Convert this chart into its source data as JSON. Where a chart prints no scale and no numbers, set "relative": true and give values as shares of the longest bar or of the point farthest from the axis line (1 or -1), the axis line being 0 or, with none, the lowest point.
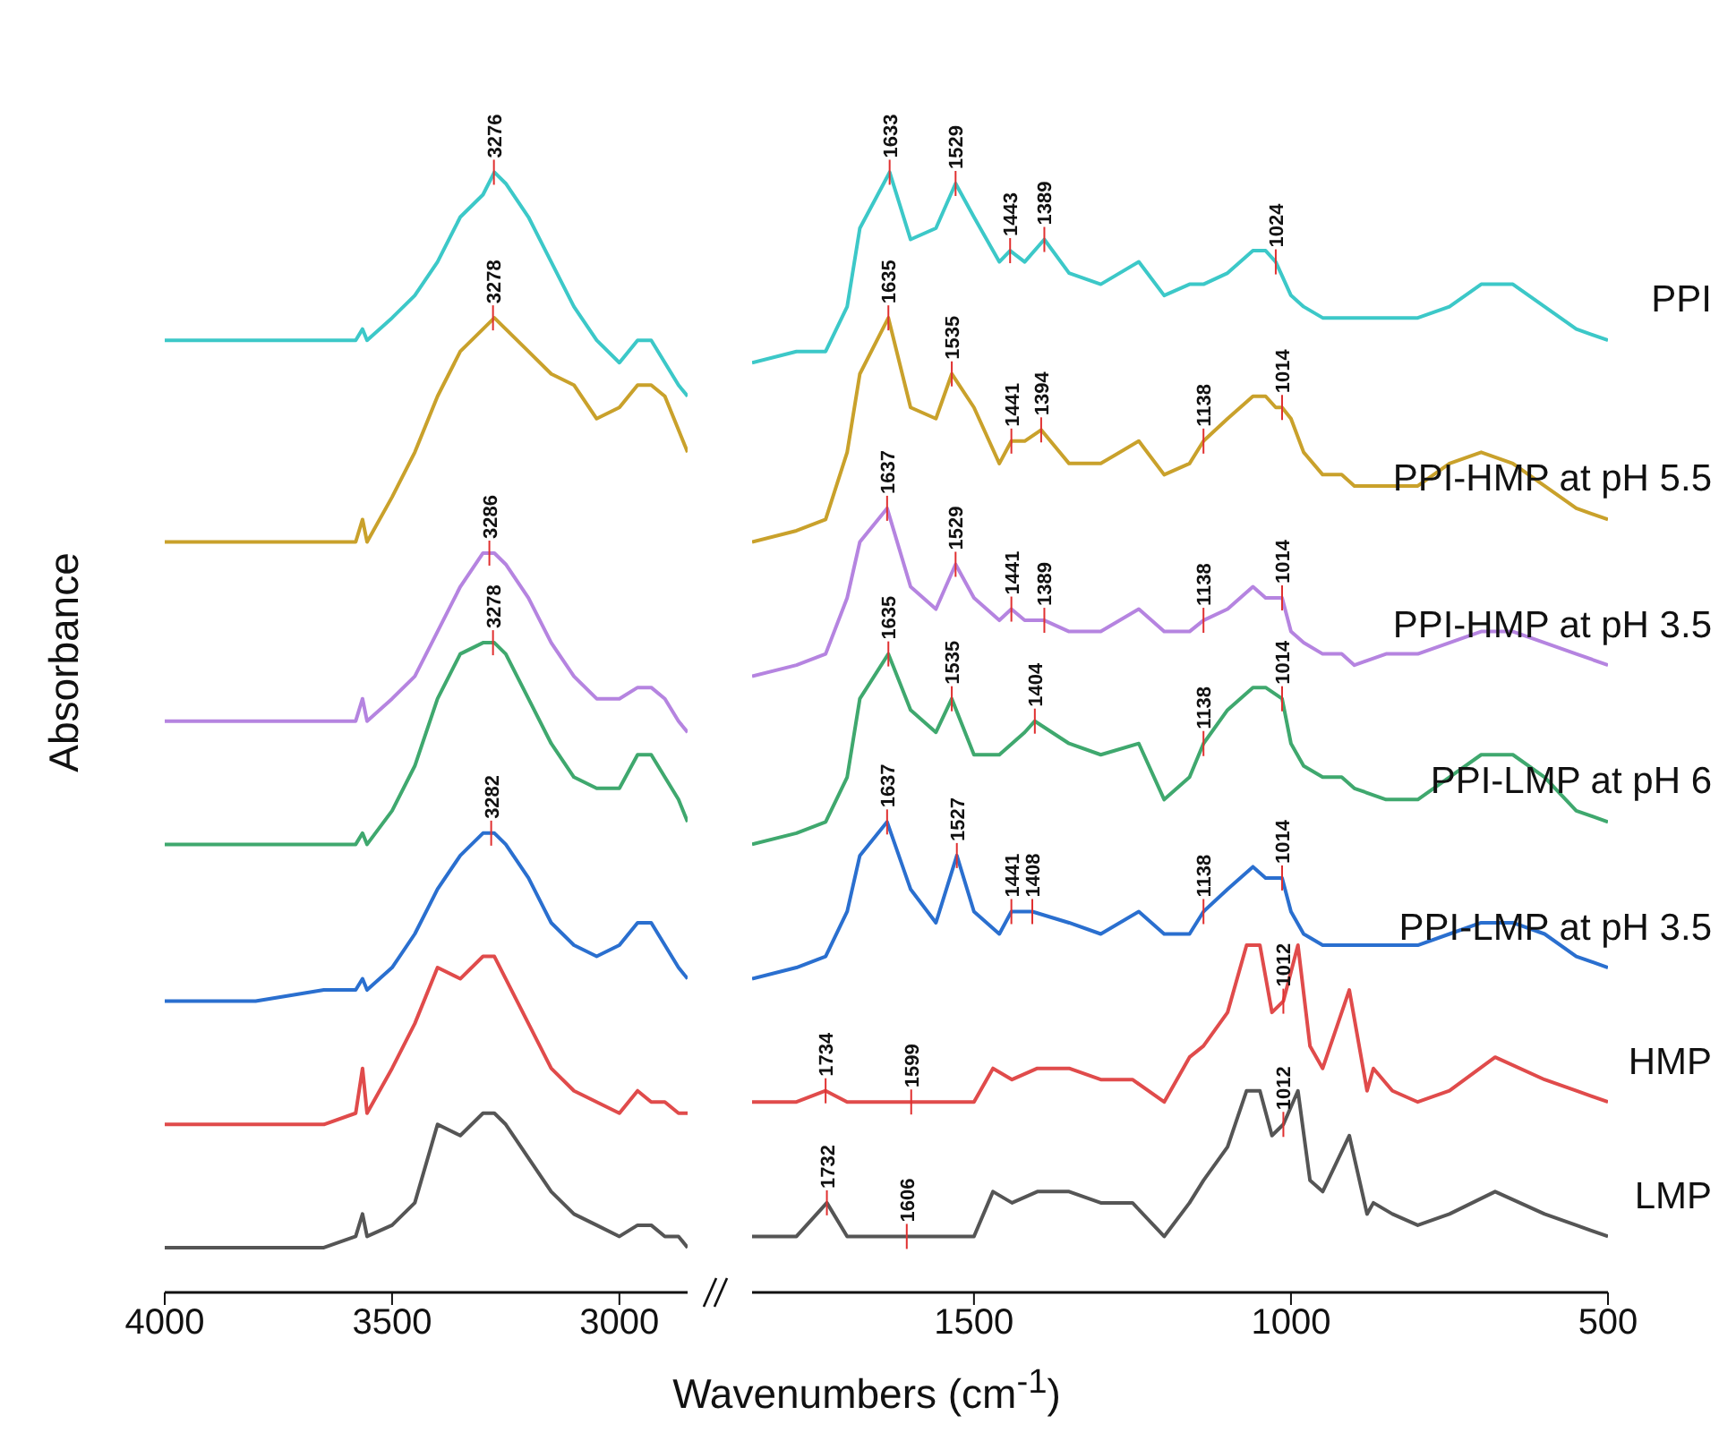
{
  "chart_data": [
    {
      "type": "line",
      "relative": true,
      "ylabel": "Absorbance",
      "xlabel": "Wavenumbers (cm$^{-1}$)",
      "x": [
        4000,
        3800,
        3650,
        3580,
        3565,
        3555,
        3500,
        3450,
        3400,
        3350,
        3300,
        3275,
        3250,
        3200,
        3150,
        3100,
        3050,
        3000,
        2960,
        2930,
        2900,
        2870,
        2850
      ],
      "xlim": [
        4000,
        2850
      ],
      "xticks": [
        4000,
        3500,
        3000
      ],
      "series": [
        {
          "color": "#3cc8c8",
          "values": [
            0.85,
            0.85,
            0.85,
            0.85,
            0.86,
            0.85,
            0.87,
            0.89,
            0.92,
            0.96,
            0.98,
            1,
            0.99,
            0.96,
            0.92,
            0.88,
            0.85,
            0.83,
            0.85,
            0.85,
            0.83,
            0.81,
            0.8
          ]
        },
        {
          "color": "#c9a12b",
          "values": [
            0.67,
            0.67,
            0.67,
            0.67,
            0.69,
            0.67,
            0.71,
            0.75,
            0.8,
            0.84,
            0.86,
            0.87,
            0.86,
            0.84,
            0.82,
            0.81,
            0.78,
            0.79,
            0.81,
            0.81,
            0.8,
            0.77,
            0.75
          ]
        },
        {
          "color": "#b584e0",
          "values": [
            0.51,
            0.51,
            0.51,
            0.51,
            0.53,
            0.51,
            0.53,
            0.55,
            0.59,
            0.63,
            0.66,
            0.66,
            0.65,
            0.62,
            0.58,
            0.55,
            0.53,
            0.53,
            0.54,
            0.54,
            0.53,
            0.51,
            0.5
          ]
        },
        {
          "color": "#3fa86e",
          "values": [
            0.4,
            0.4,
            0.4,
            0.4,
            0.41,
            0.4,
            0.43,
            0.47,
            0.53,
            0.57,
            0.58,
            0.58,
            0.57,
            0.53,
            0.49,
            0.46,
            0.45,
            0.45,
            0.48,
            0.48,
            0.46,
            0.44,
            0.42
          ]
        },
        {
          "color": "#2a6fcf",
          "values": [
            0.26,
            0.26,
            0.27,
            0.27,
            0.28,
            0.27,
            0.29,
            0.32,
            0.36,
            0.39,
            0.41,
            0.41,
            0.4,
            0.37,
            0.33,
            0.31,
            0.3,
            0.31,
            0.33,
            0.33,
            0.31,
            0.29,
            0.28
          ]
        },
        {
          "color": "#e04b4b",
          "values": [
            0.15,
            0.15,
            0.15,
            0.16,
            0.2,
            0.16,
            0.2,
            0.24,
            0.29,
            0.28,
            0.3,
            0.3,
            0.28,
            0.24,
            0.2,
            0.18,
            0.17,
            0.16,
            0.18,
            0.17,
            0.17,
            0.16,
            0.16
          ]
        },
        {
          "color": "#555555",
          "values": [
            0.04,
            0.04,
            0.04,
            0.05,
            0.07,
            0.05,
            0.06,
            0.08,
            0.15,
            0.14,
            0.16,
            0.16,
            0.15,
            0.12,
            0.09,
            0.07,
            0.06,
            0.05,
            0.06,
            0.06,
            0.05,
            0.05,
            0.04
          ]
        }
      ],
      "annotations": [
        {
          "text": "3276",
          "x": 3276,
          "y": 1
        },
        {
          "text": "3278",
          "x": 3278,
          "y": 0.87
        },
        {
          "text": "3286",
          "x": 3286,
          "y": 0.66
        },
        {
          "text": "3278",
          "x": 3278,
          "y": 0.58
        },
        {
          "text": "3282",
          "x": 3282,
          "y": 0.41
        }
      ]
    },
    {
      "type": "line",
      "relative": true,
      "xlim": [
        1850,
        500
      ],
      "xticks": [
        1500,
        1000,
        500
      ],
      "series": [
        {
          "name": "PPI",
          "color": "#3cc8c8",
          "x": [
            1850,
            1780,
            1734,
            1700,
            1680,
            1633,
            1600,
            1560,
            1529,
            1500,
            1460,
            1443,
            1420,
            1389,
            1350,
            1300,
            1240,
            1200,
            1160,
            1138,
            1100,
            1060,
            1040,
            1024,
            1000,
            980,
            950,
            920,
            900,
            850,
            800,
            750,
            700,
            650,
            600,
            550,
            500
          ],
          "values": [
            0.83,
            0.84,
            0.84,
            0.88,
            0.95,
            1,
            0.94,
            0.95,
            0.99,
            0.96,
            0.92,
            0.93,
            0.92,
            0.94,
            0.91,
            0.9,
            0.92,
            0.89,
            0.9,
            0.9,
            0.91,
            0.93,
            0.93,
            0.92,
            0.89,
            0.88,
            0.87,
            0.87,
            0.87,
            0.87,
            0.87,
            0.88,
            0.9,
            0.9,
            0.88,
            0.86,
            0.85
          ]
        },
        {
          "name": "PPI-HMP at pH 5.5",
          "color": "#c9a12b",
          "x": [
            1850,
            1780,
            1734,
            1700,
            1680,
            1635,
            1600,
            1560,
            1535,
            1500,
            1460,
            1441,
            1420,
            1394,
            1350,
            1300,
            1240,
            1200,
            1160,
            1138,
            1100,
            1060,
            1040,
            1024,
            1014,
            1000,
            980,
            950,
            920,
            900,
            850,
            800,
            750,
            700,
            650,
            600,
            550,
            500
          ],
          "values": [
            0.67,
            0.68,
            0.69,
            0.75,
            0.82,
            0.87,
            0.79,
            0.78,
            0.82,
            0.79,
            0.74,
            0.76,
            0.76,
            0.77,
            0.74,
            0.74,
            0.76,
            0.73,
            0.74,
            0.76,
            0.78,
            0.8,
            0.8,
            0.79,
            0.79,
            0.78,
            0.75,
            0.73,
            0.73,
            0.72,
            0.72,
            0.72,
            0.74,
            0.75,
            0.74,
            0.72,
            0.7,
            0.69
          ]
        },
        {
          "name": "PPI-HMP at pH 3.5",
          "color": "#b584e0",
          "x": [
            1850,
            1780,
            1734,
            1700,
            1680,
            1637,
            1600,
            1560,
            1529,
            1500,
            1460,
            1441,
            1420,
            1389,
            1350,
            1300,
            1240,
            1200,
            1160,
            1138,
            1100,
            1060,
            1040,
            1014,
            1000,
            980,
            950,
            920,
            900,
            850,
            800,
            750,
            700,
            650,
            600,
            550,
            500
          ],
          "values": [
            0.55,
            0.56,
            0.57,
            0.62,
            0.67,
            0.7,
            0.63,
            0.61,
            0.65,
            0.62,
            0.6,
            0.61,
            0.6,
            0.6,
            0.59,
            0.59,
            0.61,
            0.59,
            0.59,
            0.6,
            0.61,
            0.63,
            0.62,
            0.62,
            0.59,
            0.58,
            0.57,
            0.57,
            0.56,
            0.57,
            0.57,
            0.58,
            0.59,
            0.59,
            0.58,
            0.57,
            0.56
          ]
        },
        {
          "name": "PPI-LMP at pH 6",
          "color": "#3fa86e",
          "x": [
            1850,
            1780,
            1734,
            1700,
            1680,
            1635,
            1600,
            1560,
            1535,
            1500,
            1460,
            1420,
            1404,
            1350,
            1300,
            1240,
            1200,
            1160,
            1138,
            1100,
            1060,
            1040,
            1014,
            1000,
            980,
            950,
            920,
            900,
            850,
            800,
            750,
            700,
            650,
            600,
            550,
            500
          ],
          "values": [
            0.4,
            0.41,
            0.42,
            0.46,
            0.53,
            0.57,
            0.52,
            0.5,
            0.53,
            0.48,
            0.48,
            0.5,
            0.51,
            0.49,
            0.48,
            0.49,
            0.44,
            0.46,
            0.49,
            0.52,
            0.54,
            0.54,
            0.53,
            0.49,
            0.47,
            0.46,
            0.46,
            0.45,
            0.44,
            0.44,
            0.46,
            0.48,
            0.48,
            0.46,
            0.43,
            0.42
          ]
        },
        {
          "name": "PPI-LMP at pH 3.5",
          "color": "#2a6fcf",
          "x": [
            1850,
            1780,
            1734,
            1700,
            1680,
            1637,
            1600,
            1560,
            1527,
            1500,
            1460,
            1441,
            1408,
            1350,
            1300,
            1240,
            1200,
            1160,
            1138,
            1100,
            1060,
            1040,
            1014,
            1000,
            980,
            950,
            920,
            900,
            850,
            800,
            750,
            700,
            650,
            600,
            550,
            500
          ],
          "values": [
            0.28,
            0.29,
            0.3,
            0.34,
            0.39,
            0.42,
            0.36,
            0.33,
            0.39,
            0.34,
            0.32,
            0.34,
            0.34,
            0.33,
            0.32,
            0.34,
            0.32,
            0.32,
            0.34,
            0.36,
            0.38,
            0.37,
            0.37,
            0.34,
            0.32,
            0.31,
            0.31,
            0.31,
            0.31,
            0.31,
            0.32,
            0.33,
            0.33,
            0.32,
            0.3,
            0.29
          ]
        },
        {
          "name": "HMP",
          "color": "#e04b4b",
          "x": [
            1850,
            1780,
            1734,
            1700,
            1650,
            1599,
            1560,
            1500,
            1470,
            1440,
            1400,
            1350,
            1300,
            1250,
            1200,
            1160,
            1138,
            1100,
            1070,
            1049,
            1030,
            1012,
            989,
            970,
            950,
            908,
            880,
            870,
            840,
            800,
            750,
            678,
            600,
            550,
            500
          ],
          "values": [
            0.17,
            0.17,
            0.18,
            0.17,
            0.17,
            0.17,
            0.17,
            0.17,
            0.2,
            0.19,
            0.2,
            0.2,
            0.19,
            0.19,
            0.17,
            0.21,
            0.22,
            0.25,
            0.31,
            0.31,
            0.25,
            0.26,
            0.31,
            0.22,
            0.2,
            0.27,
            0.18,
            0.2,
            0.18,
            0.17,
            0.18,
            0.21,
            0.19,
            0.18,
            0.17
          ]
        },
        {
          "name": "LMP",
          "color": "#555555",
          "x": [
            1850,
            1780,
            1732,
            1700,
            1650,
            1606,
            1560,
            1500,
            1470,
            1440,
            1400,
            1350,
            1300,
            1250,
            1200,
            1160,
            1138,
            1100,
            1070,
            1049,
            1030,
            1012,
            989,
            970,
            950,
            908,
            880,
            870,
            840,
            800,
            750,
            678,
            600,
            550,
            500
          ],
          "values": [
            0.05,
            0.05,
            0.08,
            0.05,
            0.05,
            0.05,
            0.05,
            0.05,
            0.09,
            0.08,
            0.09,
            0.09,
            0.08,
            0.08,
            0.05,
            0.08,
            0.1,
            0.13,
            0.18,
            0.18,
            0.14,
            0.15,
            0.18,
            0.1,
            0.09,
            0.14,
            0.07,
            0.08,
            0.07,
            0.06,
            0.07,
            0.09,
            0.07,
            0.06,
            0.05
          ]
        }
      ],
      "annotations": [
        {
          "text": "1633",
          "x": 1633,
          "y": 1
        },
        {
          "text": "1529",
          "x": 1529,
          "y": 0.99
        },
        {
          "text": "1443",
          "x": 1443,
          "y": 0.93
        },
        {
          "text": "1389",
          "x": 1389,
          "y": 0.94
        },
        {
          "text": "1024",
          "x": 1024,
          "y": 0.92
        },
        {
          "text": "1635",
          "x": 1635,
          "y": 0.87
        },
        {
          "text": "1535",
          "x": 1535,
          "y": 0.82
        },
        {
          "text": "1441",
          "x": 1441,
          "y": 0.76
        },
        {
          "text": "1394",
          "x": 1394,
          "y": 0.77
        },
        {
          "text": "1138",
          "x": 1138,
          "y": 0.76
        },
        {
          "text": "1014",
          "x": 1014,
          "y": 0.79
        },
        {
          "text": "1637",
          "x": 1637,
          "y": 0.7
        },
        {
          "text": "1529",
          "x": 1529,
          "y": 0.65
        },
        {
          "text": "1441",
          "x": 1441,
          "y": 0.61
        },
        {
          "text": "1389",
          "x": 1389,
          "y": 0.6
        },
        {
          "text": "1138",
          "x": 1138,
          "y": 0.6
        },
        {
          "text": "1014",
          "x": 1014,
          "y": 0.62
        },
        {
          "text": "1635",
          "x": 1635,
          "y": 0.57
        },
        {
          "text": "1535",
          "x": 1535,
          "y": 0.53
        },
        {
          "text": "1404",
          "x": 1404,
          "y": 0.51
        },
        {
          "text": "1138",
          "x": 1138,
          "y": 0.49
        },
        {
          "text": "1014",
          "x": 1014,
          "y": 0.53
        },
        {
          "text": "1637",
          "x": 1637,
          "y": 0.42
        },
        {
          "text": "1527",
          "x": 1527,
          "y": 0.39
        },
        {
          "text": "1441",
          "x": 1441,
          "y": 0.34
        },
        {
          "text": "1408",
          "x": 1408,
          "y": 0.34
        },
        {
          "text": "1138",
          "x": 1138,
          "y": 0.34
        },
        {
          "text": "1014",
          "x": 1014,
          "y": 0.37
        },
        {
          "text": "1734",
          "x": 1734,
          "y": 0.18
        },
        {
          "text": "1599",
          "x": 1599,
          "y": 0.17
        },
        {
          "text": "1012",
          "x": 1012,
          "y": 0.26
        },
        {
          "text": "1732",
          "x": 1732,
          "y": 0.08
        },
        {
          "text": "1606",
          "x": 1606,
          "y": 0.05
        },
        {
          "text": "1012",
          "x": 1012,
          "y": 0.15
        }
      ]
    }
  ]
}
